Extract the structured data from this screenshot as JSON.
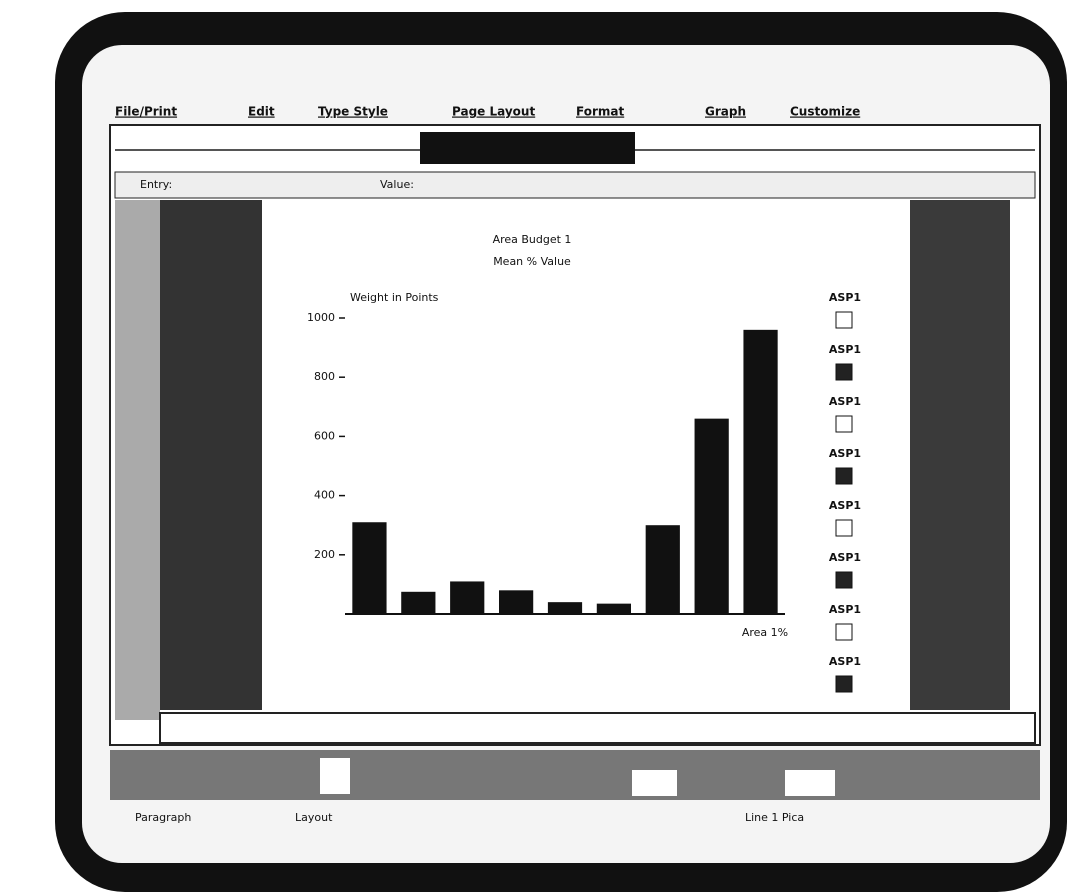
{
  "menu": [
    "File/Print",
    "Edit",
    "Type Style",
    "Page Layout",
    "Format",
    "Graph",
    "Customize"
  ],
  "status": {
    "entry": "Entry:",
    "value": "Value:"
  },
  "chart_data": {
    "type": "bar",
    "title": "Area Budget 1",
    "subtitle": "Mean % Value",
    "y_label": "Weight in Points",
    "x_label": "Area 1%",
    "categories": [
      null,
      null,
      null,
      null,
      null,
      null,
      null,
      null,
      null
    ],
    "values": [
      310,
      75,
      110,
      80,
      40,
      35,
      300,
      660,
      960
    ],
    "color": "#111111",
    "ylim": [
      0,
      1000
    ],
    "yticks": [
      200,
      400,
      600,
      800,
      1000
    ],
    "grid": false,
    "legend": [
      "ASP1",
      "ASP1",
      "ASP1",
      "ASP1",
      "ASP1",
      "ASP1",
      "ASP1",
      "ASP1"
    ]
  },
  "footer": [
    "Paragraph",
    "Layout",
    "Line 1 Pica"
  ]
}
